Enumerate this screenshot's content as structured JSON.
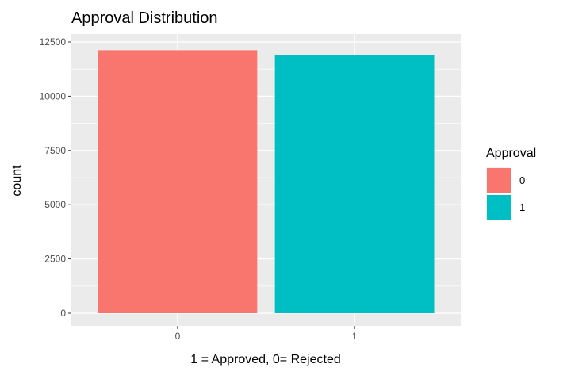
{
  "chart_data": {
    "type": "bar",
    "title": "Approval Distribution",
    "xlabel": "1 = Approved, 0= Rejected",
    "ylabel": "count",
    "categories": [
      "0",
      "1"
    ],
    "values": [
      12120,
      11880
    ],
    "ylim": [
      0,
      12500
    ],
    "yticks": [
      0,
      2500,
      5000,
      7500,
      10000,
      12500
    ],
    "grid": true,
    "legend": {
      "title": "Approval",
      "position": "right",
      "entries": [
        {
          "label": "0",
          "color": "#F8766D"
        },
        {
          "label": "1",
          "color": "#00BFC4"
        }
      ]
    },
    "colors": [
      "#F8766D",
      "#00BFC4"
    ],
    "panel_background": "#EBEBEB",
    "grid_color": "#FFFFFF"
  }
}
